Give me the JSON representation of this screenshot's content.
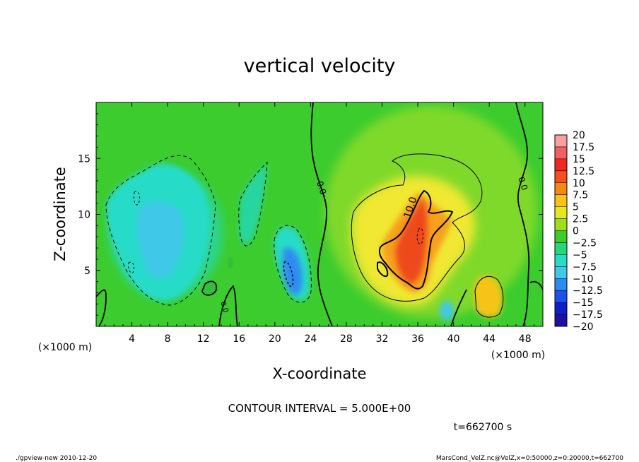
{
  "chart_data": {
    "type": "heatmap",
    "title": "vertical velocity",
    "xlabel": "X-coordinate",
    "ylabel": "Z-coordinate",
    "x_unit_left": "(×1000 m)",
    "x_unit_right": "(×1000 m)",
    "xlim": [
      0,
      50
    ],
    "ylim": [
      0,
      20
    ],
    "x_ticks": [
      4,
      8,
      12,
      16,
      20,
      24,
      28,
      32,
      36,
      40,
      44,
      48
    ],
    "y_ticks": [
      5,
      10,
      15
    ],
    "colorbar": {
      "levels": [
        "20",
        "17.5",
        "15",
        "12.5",
        "10",
        "7.5",
        "5",
        "2.5",
        "0",
        "−2.5",
        "−5",
        "−7.5",
        "−10",
        "−12.5",
        "−15",
        "−17.5",
        "−20"
      ],
      "colors": [
        "#f7a0a0",
        "#f06060",
        "#ee2a1c",
        "#f5501a",
        "#f38a10",
        "#f6c414",
        "#e4e81e",
        "#9ee018",
        "#3ccc2e",
        "#28d67a",
        "#28dcc8",
        "#40c8e8",
        "#2e8cf0",
        "#2050e8",
        "#1020c8",
        "#2010a0",
        "#6a10b0"
      ]
    },
    "contour_labels": [
      "0.0",
      "0.0",
      "0.0",
      "10.0"
    ],
    "features": [
      {
        "kind": "updraft",
        "x": 35,
        "z": 7,
        "value": 12
      },
      {
        "kind": "updraft",
        "x": 44,
        "z": 3,
        "value": 5
      },
      {
        "kind": "downdraft",
        "x": 8,
        "z": 8,
        "value": -6
      },
      {
        "kind": "downdraft",
        "x": 22,
        "z": 5,
        "value": -7
      },
      {
        "kind": "downdraft",
        "x": 39,
        "z": 1.5,
        "value": -8
      }
    ],
    "contour_interval": "CONTOUR INTERVAL = 5.000E+00",
    "time_label": "t=662700 s"
  },
  "footer": {
    "left": "./gpview-new  2010-12-20",
    "right": "MarsCond_VelZ.nc@VelZ,x=0:50000,z=0:20000,t=662700"
  }
}
